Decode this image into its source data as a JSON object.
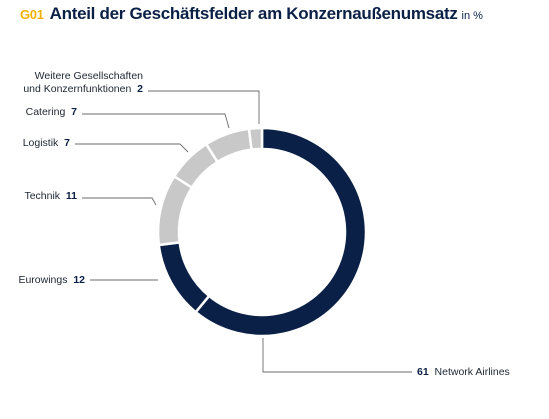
{
  "figure": {
    "number": "G01",
    "title": "Anteil der Geschäftsfelder am Konzernaußenumsatz",
    "unit": "in %"
  },
  "chart_data": {
    "type": "pie",
    "variant": "donut",
    "start_at": "top",
    "direction": "clockwise",
    "slices": [
      {
        "label": "Network Airlines",
        "value": 61,
        "color": "#0b2046"
      },
      {
        "label": "Eurowings",
        "value": 12,
        "color": "#0b2046"
      },
      {
        "label": "Technik",
        "value": 11,
        "color": "#c8c8c8"
      },
      {
        "label": "Logistik",
        "value": 7,
        "color": "#c8c8c8"
      },
      {
        "label": "Catering",
        "value": 7,
        "color": "#c8c8c8"
      },
      {
        "label_lines": [
          "Weitere Gesellschaften",
          "und Konzernfunktionen"
        ],
        "value": 2,
        "color": "#c8c8c8"
      }
    ],
    "separator_color": "#ffffff",
    "leader_color": "#6b6b6b"
  }
}
